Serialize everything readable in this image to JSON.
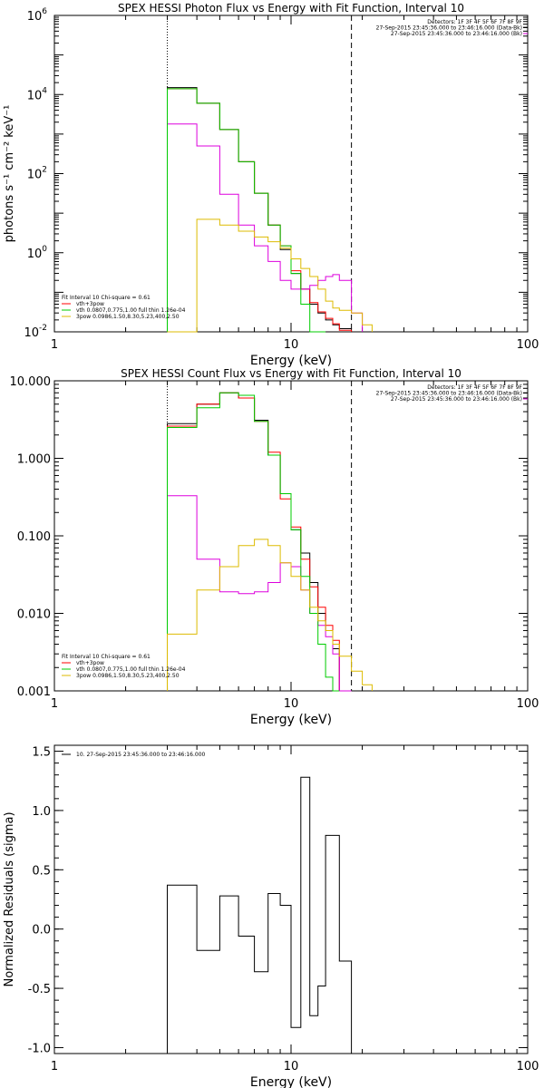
{
  "chart_data": [
    {
      "type": "line",
      "step": true,
      "title": "SPEX HESSI Photon Flux vs Energy with Fit Function, Interval 10",
      "xlabel": "Energy (keV)",
      "ylabel": "photons s⁻¹ cm⁻² keV⁻¹",
      "xscale": "log",
      "yscale": "log",
      "xlim": [
        1,
        100
      ],
      "ylim": [
        0.01,
        1000000
      ],
      "xticks": [
        {
          "v": 1,
          "label": "1"
        },
        {
          "v": 10,
          "label": "10"
        },
        {
          "v": 100,
          "label": "100"
        }
      ],
      "yticks": [
        {
          "v": 0.01,
          "base": "10",
          "exp": "-2"
        },
        {
          "v": 1,
          "base": "10",
          "exp": "0"
        },
        {
          "v": 100,
          "base": "10",
          "exp": "2"
        },
        {
          "v": 10000,
          "base": "10",
          "exp": "4"
        },
        {
          "v": 1000000,
          "base": "10",
          "exp": "6"
        }
      ],
      "vlines": [
        {
          "x": 3.0,
          "style": "dotted"
        },
        {
          "x": 18.0,
          "style": "dashed"
        }
      ],
      "header": [
        "Detectors: 1F 3F 4F 5F 6F 7F 8F 9F",
        "27-Sep-2015 23:45:36.000 to 23:46:16.000 (Data-Bk)",
        "27-Sep-2015 23:45:36.000 to 23:46:16.000 (Bk)"
      ],
      "legend_position": "bottom-left",
      "legend": [
        "Fit Interval 10   Chi-square = 0.61",
        "vth+3pow",
        "vth 0.0807,0.775,1.00  full thin 1.26e-04",
        "3pow 0.0986,1.50,8.30,5.23,400,2.50"
      ],
      "edges": [
        3.0,
        4.0,
        5.0,
        6.0,
        7.0,
        8.0,
        9.0,
        10.0,
        11.0,
        12.0,
        13.0,
        14.0,
        15.0,
        16.0,
        18.0,
        20.0,
        22.0
      ],
      "series": [
        {
          "color": "#000000",
          "values": [
            15000,
            6000,
            1300,
            200,
            32,
            5.0,
            1.2,
            0.3,
            0.12,
            0.05,
            0.03,
            0.02,
            0.015,
            0.012
          ]
        },
        {
          "color": "#ff0000",
          "values": [
            14000,
            6000,
            1300,
            200,
            32,
            5.0,
            1.5,
            0.35,
            0.12,
            0.055,
            0.032,
            0.022,
            0.016,
            0.011
          ]
        },
        {
          "color": "#dd00dd",
          "values": [
            1800,
            500,
            30,
            5.0,
            1.5,
            0.6,
            0.2,
            0.12,
            0.12,
            0.15,
            0.2,
            0.25,
            0.28,
            0.2,
            0.03
          ]
        },
        {
          "color": "#00cc00",
          "values": [
            14000,
            6000,
            1300,
            200,
            32,
            5.0,
            1.5,
            0.3,
            0.05,
            0.01,
            0.005
          ]
        },
        {
          "color": "#ddbb00",
          "values": [
            0.01,
            7.0,
            5.0,
            3.5,
            2.5,
            1.9,
            1.3,
            0.7,
            0.4,
            0.25,
            0.12,
            0.06,
            0.04,
            0.035,
            0.03,
            0.015,
            0.008
          ]
        }
      ]
    },
    {
      "type": "line",
      "step": true,
      "title": "SPEX HESSI Count Flux vs Energy with Fit Function, Interval 10",
      "xlabel": "Energy (keV)",
      "ylabel": "",
      "xscale": "log",
      "yscale": "log",
      "xlim": [
        1,
        100
      ],
      "ylim": [
        0.001,
        10
      ],
      "xticks": [
        {
          "v": 1,
          "label": "1"
        },
        {
          "v": 10,
          "label": "10"
        },
        {
          "v": 100,
          "label": "100"
        }
      ],
      "yticks": [
        {
          "v": 0.001,
          "label": "0.001"
        },
        {
          "v": 0.01,
          "label": "0.010"
        },
        {
          "v": 0.1,
          "label": "0.100"
        },
        {
          "v": 1,
          "label": "1.000"
        },
        {
          "v": 10,
          "label": "10.000"
        }
      ],
      "vlines": [
        {
          "x": 3.0,
          "style": "dotted"
        },
        {
          "x": 18.0,
          "style": "dashed"
        }
      ],
      "header": [
        "Detectors: 1F 3F 4F 5F 6F 7F 8F 9F",
        "27-Sep-2015 23:45:36.000 to 23:46:16.000 (Data-Bk)",
        "27-Sep-2015 23:45:36.000 to 23:46:16.000 (Bk)"
      ],
      "legend_position": "bottom-left",
      "legend": [
        "Fit Interval 10   Chi-square = 0.61",
        "vth+3pow",
        "vth 0.0807,0.775,1.00  full thin 1.26e-04",
        "3pow 0.0986,1.50,8.30,5.23,400,2.50"
      ],
      "edges": [
        3.0,
        4.0,
        5.0,
        6.0,
        7.0,
        8.0,
        9.0,
        10.0,
        11.0,
        12.0,
        13.0,
        14.0,
        15.0,
        16.0,
        18.0,
        20.0,
        22.0
      ],
      "series": [
        {
          "color": "#000000",
          "values": [
            2.8,
            5.0,
            7.0,
            6.0,
            3.1,
            1.1,
            0.35,
            0.12,
            0.06,
            0.025,
            0.01,
            0.006,
            0.0035
          ]
        },
        {
          "color": "#ff0000",
          "values": [
            2.6,
            5.0,
            7.0,
            6.0,
            3.0,
            1.2,
            0.3,
            0.13,
            0.05,
            0.022,
            0.012,
            0.007,
            0.0045
          ]
        },
        {
          "color": "#dd00dd",
          "values": [
            0.33,
            0.05,
            0.019,
            0.018,
            0.019,
            0.025,
            0.045,
            0.04,
            0.02,
            0.01,
            0.007,
            0.005,
            0.003,
            0.001
          ]
        },
        {
          "color": "#00cc00",
          "values": [
            2.5,
            4.5,
            7.0,
            6.5,
            3.0,
            1.1,
            0.35,
            0.12,
            0.03,
            0.01,
            0.004,
            0.0015,
            0.0008
          ]
        },
        {
          "color": "#ddbb00",
          "values": [
            0.0054,
            0.02,
            0.04,
            0.075,
            0.09,
            0.075,
            0.045,
            0.03,
            0.02,
            0.012,
            0.008,
            0.006,
            0.004,
            0.0028,
            0.0018,
            0.0012,
            0.0008
          ]
        }
      ]
    },
    {
      "type": "line",
      "step": true,
      "title": "",
      "xlabel": "Energy (keV)",
      "ylabel": "Normalized Residuals (sigma)",
      "xscale": "log",
      "yscale": "linear",
      "xlim": [
        1,
        100
      ],
      "ylim": [
        -1.05,
        1.55
      ],
      "xticks": [
        {
          "v": 1,
          "label": "1"
        },
        {
          "v": 10,
          "label": "10"
        },
        {
          "v": 100,
          "label": "100"
        }
      ],
      "yticks": [
        {
          "v": -1.0,
          "label": "-1.0"
        },
        {
          "v": -0.5,
          "label": "-0.5"
        },
        {
          "v": 0.0,
          "label": "0.0"
        },
        {
          "v": 0.5,
          "label": "0.5"
        },
        {
          "v": 1.0,
          "label": "1.0"
        },
        {
          "v": 1.5,
          "label": "1.5"
        }
      ],
      "vlines": [],
      "header": [],
      "legend_position": "top-left",
      "legend": [
        "10. 27-Sep-2015 23:45:36.000 to 23:46:16.000"
      ],
      "edges": [
        3.0,
        4.0,
        5.0,
        6.0,
        7.0,
        8.0,
        9.0,
        10.0,
        11.0,
        12.0,
        13.0,
        14.0,
        16.0,
        18.0
      ],
      "series": [
        {
          "color": "#000000",
          "values": [
            0.37,
            -0.18,
            0.28,
            -0.06,
            -0.36,
            0.3,
            0.2,
            -0.83,
            1.28,
            -0.73,
            -0.48,
            0.79,
            -0.27
          ]
        }
      ]
    }
  ]
}
